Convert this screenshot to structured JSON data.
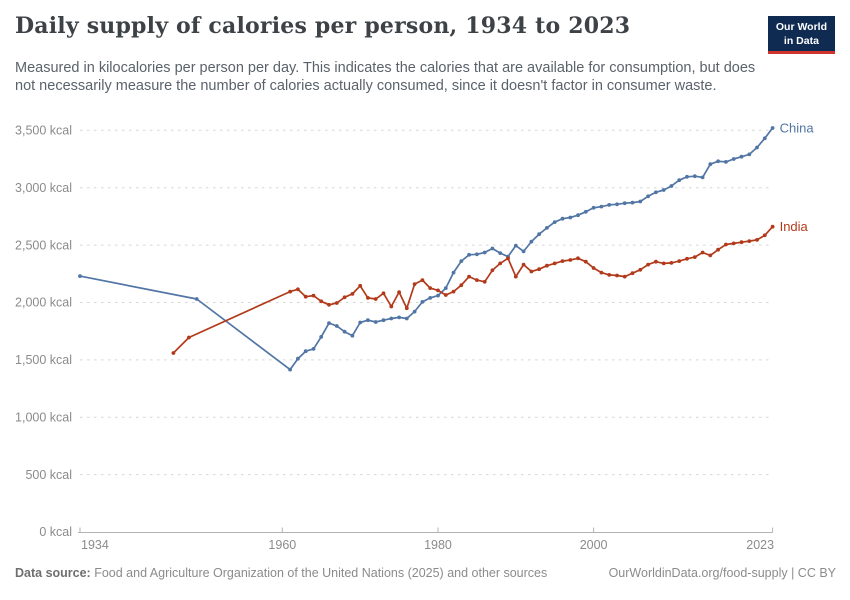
{
  "header": {
    "title": "Daily supply of calories per person, 1934 to 2023",
    "subtitle": "Measured in kilocalories per person per day. This indicates the calories that are available for consumption, but does not necessarily measure the number of calories actually consumed, since it doesn't factor in consumer waste.",
    "logo": {
      "line1": "Our World",
      "line2": "in Data"
    }
  },
  "footer": {
    "source_label": "Data source:",
    "source_text": " Food and Agriculture Organization of the United Nations (2025) and other sources",
    "right_text": "OurWorldinData.org/food-supply | CC BY"
  },
  "colors": {
    "china_line": "#5175a4",
    "india_line": "#b23a1b",
    "gridline": "#d6d6d6",
    "axis_line": "#b3b3b3",
    "axis_label": "#8b8b8b",
    "logo_bg": "#0f2b52",
    "logo_stripe": "#d0342c"
  },
  "chart_data": {
    "type": "line",
    "title": "Daily supply of calories per person, 1934 to 2023",
    "xlabel": "",
    "ylabel": "",
    "xlim": [
      1934,
      2023
    ],
    "ylim": [
      0,
      3500
    ],
    "grid": "horizontal-dashed",
    "legend_position": "labels-at-line-ends",
    "x_ticks": [
      {
        "value": 1934,
        "label": "1934"
      },
      {
        "value": 1960,
        "label": "1960"
      },
      {
        "value": 1980,
        "label": "1980"
      },
      {
        "value": 2000,
        "label": "2000"
      },
      {
        "value": 2023,
        "label": "2023"
      }
    ],
    "y_ticks": [
      {
        "value": 0,
        "label": "0 kcal"
      },
      {
        "value": 500,
        "label": "500 kcal"
      },
      {
        "value": 1000,
        "label": "1,000 kcal"
      },
      {
        "value": 1500,
        "label": "1,500 kcal"
      },
      {
        "value": 2000,
        "label": "2,000 kcal"
      },
      {
        "value": 2500,
        "label": "2,500 kcal"
      },
      {
        "value": 3000,
        "label": "3,000 kcal"
      },
      {
        "value": 3500,
        "label": "3,500 kcal"
      }
    ],
    "series": [
      {
        "name": "China",
        "color": "#5175a4",
        "points": [
          [
            1934,
            2230
          ],
          [
            1949,
            2030
          ],
          [
            1961,
            1415
          ],
          [
            1962,
            1510
          ],
          [
            1963,
            1575
          ],
          [
            1964,
            1595
          ],
          [
            1965,
            1700
          ],
          [
            1966,
            1820
          ],
          [
            1967,
            1795
          ],
          [
            1968,
            1745
          ],
          [
            1969,
            1710
          ],
          [
            1970,
            1825
          ],
          [
            1971,
            1845
          ],
          [
            1972,
            1830
          ],
          [
            1973,
            1845
          ],
          [
            1974,
            1860
          ],
          [
            1975,
            1870
          ],
          [
            1976,
            1860
          ],
          [
            1977,
            1920
          ],
          [
            1978,
            2005
          ],
          [
            1979,
            2040
          ],
          [
            1980,
            2060
          ],
          [
            1981,
            2125
          ],
          [
            1982,
            2260
          ],
          [
            1983,
            2360
          ],
          [
            1984,
            2415
          ],
          [
            1985,
            2420
          ],
          [
            1986,
            2435
          ],
          [
            1987,
            2470
          ],
          [
            1988,
            2430
          ],
          [
            1989,
            2400
          ],
          [
            1990,
            2495
          ],
          [
            1991,
            2445
          ],
          [
            1992,
            2530
          ],
          [
            1993,
            2595
          ],
          [
            1994,
            2650
          ],
          [
            1995,
            2700
          ],
          [
            1996,
            2730
          ],
          [
            1997,
            2740
          ],
          [
            1998,
            2760
          ],
          [
            1999,
            2790
          ],
          [
            2000,
            2825
          ],
          [
            2001,
            2835
          ],
          [
            2002,
            2850
          ],
          [
            2003,
            2855
          ],
          [
            2004,
            2865
          ],
          [
            2005,
            2870
          ],
          [
            2006,
            2880
          ],
          [
            2007,
            2925
          ],
          [
            2008,
            2960
          ],
          [
            2009,
            2980
          ],
          [
            2010,
            3015
          ],
          [
            2011,
            3065
          ],
          [
            2012,
            3095
          ],
          [
            2013,
            3100
          ],
          [
            2014,
            3090
          ],
          [
            2015,
            3205
          ],
          [
            2016,
            3230
          ],
          [
            2017,
            3225
          ],
          [
            2018,
            3250
          ],
          [
            2019,
            3270
          ],
          [
            2020,
            3290
          ],
          [
            2021,
            3350
          ],
          [
            2022,
            3430
          ],
          [
            2023,
            3520
          ]
        ]
      },
      {
        "name": "India",
        "color": "#b23a1b",
        "points": [
          [
            1946,
            1560
          ],
          [
            1948,
            1695
          ],
          [
            1961,
            2095
          ],
          [
            1962,
            2115
          ],
          [
            1963,
            2050
          ],
          [
            1964,
            2060
          ],
          [
            1965,
            2010
          ],
          [
            1966,
            1980
          ],
          [
            1967,
            1995
          ],
          [
            1968,
            2045
          ],
          [
            1969,
            2075
          ],
          [
            1970,
            2145
          ],
          [
            1971,
            2040
          ],
          [
            1972,
            2030
          ],
          [
            1973,
            2080
          ],
          [
            1974,
            1965
          ],
          [
            1975,
            2090
          ],
          [
            1976,
            1950
          ],
          [
            1977,
            2160
          ],
          [
            1978,
            2195
          ],
          [
            1979,
            2125
          ],
          [
            1980,
            2105
          ],
          [
            1981,
            2065
          ],
          [
            1982,
            2095
          ],
          [
            1983,
            2150
          ],
          [
            1984,
            2225
          ],
          [
            1985,
            2195
          ],
          [
            1986,
            2180
          ],
          [
            1987,
            2280
          ],
          [
            1988,
            2340
          ],
          [
            1989,
            2385
          ],
          [
            1990,
            2225
          ],
          [
            1991,
            2330
          ],
          [
            1992,
            2270
          ],
          [
            1993,
            2290
          ],
          [
            1994,
            2320
          ],
          [
            1995,
            2340
          ],
          [
            1996,
            2360
          ],
          [
            1997,
            2370
          ],
          [
            1998,
            2385
          ],
          [
            1999,
            2355
          ],
          [
            2000,
            2300
          ],
          [
            2001,
            2260
          ],
          [
            2002,
            2240
          ],
          [
            2003,
            2235
          ],
          [
            2004,
            2225
          ],
          [
            2005,
            2255
          ],
          [
            2006,
            2285
          ],
          [
            2007,
            2330
          ],
          [
            2008,
            2355
          ],
          [
            2009,
            2340
          ],
          [
            2010,
            2345
          ],
          [
            2011,
            2360
          ],
          [
            2012,
            2380
          ],
          [
            2013,
            2395
          ],
          [
            2014,
            2435
          ],
          [
            2015,
            2410
          ],
          [
            2016,
            2460
          ],
          [
            2017,
            2505
          ],
          [
            2018,
            2515
          ],
          [
            2019,
            2525
          ],
          [
            2020,
            2535
          ],
          [
            2021,
            2545
          ],
          [
            2022,
            2585
          ],
          [
            2023,
            2660
          ]
        ]
      }
    ]
  }
}
